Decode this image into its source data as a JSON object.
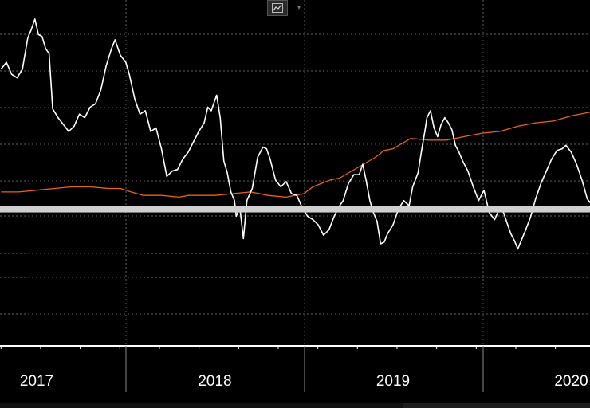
{
  "toolbar": {
    "chart_type_icon": "line-chart-icon",
    "dropdown_icon": "chevron-down-icon"
  },
  "colors": {
    "background": "#000000",
    "price_line": "#ffffff",
    "comparison_line": "#e8650a",
    "reference_line": "#cfcfcf",
    "grid": "#7a7a7a",
    "axis": "#ffffff",
    "tick_label": "#ffffff"
  },
  "chart_data": {
    "type": "line",
    "title": "",
    "xlabel": "",
    "ylabel": "",
    "x_tick_labels": [
      "2017",
      "2018",
      "2019",
      "2020"
    ],
    "grid": true,
    "xlim": [
      2016.8,
      2020.15
    ],
    "ylim": [
      0,
      100
    ],
    "reference_line": {
      "y": 39.5
    },
    "series": [
      {
        "key": "price",
        "color": "#ffffff",
        "points": [
          [
            2016.8,
            80.0
          ],
          [
            2016.83,
            82.0
          ],
          [
            2016.86,
            78.5
          ],
          [
            2016.89,
            77.5
          ],
          [
            2016.92,
            80.0
          ],
          [
            2016.95,
            89.0
          ],
          [
            2016.97,
            91.5
          ],
          [
            2016.99,
            94.5
          ],
          [
            2017.01,
            90.0
          ],
          [
            2017.03,
            89.5
          ],
          [
            2017.05,
            86.0
          ],
          [
            2017.07,
            84.5
          ],
          [
            2017.09,
            68.5
          ],
          [
            2017.12,
            66.0
          ],
          [
            2017.15,
            64.0
          ],
          [
            2017.18,
            62.0
          ],
          [
            2017.21,
            63.5
          ],
          [
            2017.24,
            67.0
          ],
          [
            2017.27,
            66.0
          ],
          [
            2017.3,
            69.0
          ],
          [
            2017.33,
            70.0
          ],
          [
            2017.36,
            74.0
          ],
          [
            2017.39,
            81.0
          ],
          [
            2017.42,
            86.0
          ],
          [
            2017.44,
            88.5
          ],
          [
            2017.47,
            84.0
          ],
          [
            2017.5,
            82.0
          ],
          [
            2017.52,
            78.5
          ],
          [
            2017.55,
            71.5
          ],
          [
            2017.58,
            67.0
          ],
          [
            2017.61,
            68.0
          ],
          [
            2017.64,
            62.0
          ],
          [
            2017.67,
            63.0
          ],
          [
            2017.7,
            57.0
          ],
          [
            2017.73,
            49.0
          ],
          [
            2017.76,
            50.5
          ],
          [
            2017.79,
            51.0
          ],
          [
            2017.82,
            54.0
          ],
          [
            2017.85,
            56.0
          ],
          [
            2017.88,
            59.0
          ],
          [
            2017.91,
            62.0
          ],
          [
            2017.94,
            64.5
          ],
          [
            2017.96,
            69.0
          ],
          [
            2017.98,
            68.0
          ],
          [
            2018.01,
            72.5
          ],
          [
            2018.03,
            66.0
          ],
          [
            2018.05,
            53.5
          ],
          [
            2018.07,
            50.0
          ],
          [
            2018.09,
            44.5
          ],
          [
            2018.11,
            42.0
          ],
          [
            2018.12,
            37.5
          ],
          [
            2018.14,
            40.0
          ],
          [
            2018.16,
            31.0
          ],
          [
            2018.18,
            42.0
          ],
          [
            2018.21,
            45.5
          ],
          [
            2018.24,
            54.5
          ],
          [
            2018.27,
            57.5
          ],
          [
            2018.29,
            57.0
          ],
          [
            2018.31,
            54.0
          ],
          [
            2018.34,
            48.0
          ],
          [
            2018.37,
            46.0
          ],
          [
            2018.4,
            47.5
          ],
          [
            2018.43,
            44.0
          ],
          [
            2018.46,
            43.5
          ],
          [
            2018.49,
            40.0
          ],
          [
            2018.52,
            37.5
          ],
          [
            2018.55,
            36.5
          ],
          [
            2018.58,
            35.0
          ],
          [
            2018.61,
            32.0
          ],
          [
            2018.64,
            33.5
          ],
          [
            2018.67,
            37.5
          ],
          [
            2018.7,
            40.5
          ],
          [
            2018.72,
            42.0
          ],
          [
            2018.75,
            47.0
          ],
          [
            2018.78,
            49.5
          ],
          [
            2018.81,
            49.5
          ],
          [
            2018.83,
            52.5
          ],
          [
            2018.85,
            47.5
          ],
          [
            2018.87,
            42.0
          ],
          [
            2018.89,
            38.5
          ],
          [
            2018.91,
            36.0
          ],
          [
            2018.93,
            29.5
          ],
          [
            2018.95,
            30.0
          ],
          [
            2018.97,
            32.5
          ],
          [
            2019.0,
            35.0
          ],
          [
            2019.03,
            39.5
          ],
          [
            2019.06,
            42.0
          ],
          [
            2019.09,
            40.5
          ],
          [
            2019.11,
            46.0
          ],
          [
            2019.14,
            50.0
          ],
          [
            2019.16,
            56.5
          ],
          [
            2019.18,
            62.5
          ],
          [
            2019.19,
            66.0
          ],
          [
            2019.21,
            68.0
          ],
          [
            2019.23,
            63.0
          ],
          [
            2019.25,
            60.5
          ],
          [
            2019.27,
            64.0
          ],
          [
            2019.29,
            66.0
          ],
          [
            2019.31,
            64.5
          ],
          [
            2019.33,
            62.5
          ],
          [
            2019.35,
            58.0
          ],
          [
            2019.37,
            56.0
          ],
          [
            2019.39,
            53.5
          ],
          [
            2019.42,
            50.5
          ],
          [
            2019.45,
            46.0
          ],
          [
            2019.48,
            42.0
          ],
          [
            2019.51,
            45.0
          ],
          [
            2019.54,
            38.5
          ],
          [
            2019.57,
            36.5
          ],
          [
            2019.6,
            40.0
          ],
          [
            2019.62,
            38.5
          ],
          [
            2019.64,
            35.5
          ],
          [
            2019.66,
            32.5
          ],
          [
            2019.68,
            30.5
          ],
          [
            2019.7,
            28.0
          ],
          [
            2019.72,
            30.5
          ],
          [
            2019.74,
            33.0
          ],
          [
            2019.77,
            37.0
          ],
          [
            2019.8,
            42.5
          ],
          [
            2019.83,
            47.0
          ],
          [
            2019.86,
            50.5
          ],
          [
            2019.89,
            54.0
          ],
          [
            2019.92,
            56.5
          ],
          [
            2019.95,
            57.0
          ],
          [
            2019.97,
            58.0
          ],
          [
            2020.0,
            56.0
          ],
          [
            2020.03,
            52.5
          ],
          [
            2020.06,
            48.0
          ],
          [
            2020.09,
            42.5
          ],
          [
            2020.12,
            40.5
          ]
        ]
      },
      {
        "key": "comparison",
        "color": "#e8650a",
        "points": [
          [
            2016.8,
            44.5
          ],
          [
            2016.9,
            44.5
          ],
          [
            2017.0,
            45.0
          ],
          [
            2017.1,
            45.5
          ],
          [
            2017.2,
            46.0
          ],
          [
            2017.3,
            46.0
          ],
          [
            2017.4,
            45.5
          ],
          [
            2017.47,
            45.5
          ],
          [
            2017.53,
            44.5
          ],
          [
            2017.6,
            43.5
          ],
          [
            2017.7,
            43.5
          ],
          [
            2017.8,
            43.0
          ],
          [
            2017.85,
            43.5
          ],
          [
            2017.9,
            43.5
          ],
          [
            2018.0,
            43.5
          ],
          [
            2018.1,
            44.0
          ],
          [
            2018.2,
            44.5
          ],
          [
            2018.3,
            43.5
          ],
          [
            2018.4,
            43.0
          ],
          [
            2018.5,
            44.0
          ],
          [
            2018.55,
            46.0
          ],
          [
            2018.6,
            47.0
          ],
          [
            2018.65,
            48.0
          ],
          [
            2018.7,
            48.5
          ],
          [
            2018.75,
            50.0
          ],
          [
            2018.8,
            51.5
          ],
          [
            2018.85,
            53.0
          ],
          [
            2018.9,
            54.5
          ],
          [
            2018.95,
            56.5
          ],
          [
            2019.0,
            57.0
          ],
          [
            2019.05,
            58.5
          ],
          [
            2019.1,
            60.0
          ],
          [
            2019.2,
            59.5
          ],
          [
            2019.3,
            59.5
          ],
          [
            2019.4,
            60.5
          ],
          [
            2019.5,
            61.5
          ],
          [
            2019.6,
            62.0
          ],
          [
            2019.7,
            63.5
          ],
          [
            2019.8,
            64.5
          ],
          [
            2019.9,
            65.0
          ],
          [
            2020.0,
            66.5
          ],
          [
            2020.1,
            67.5
          ],
          [
            2020.15,
            68.0
          ]
        ]
      }
    ]
  }
}
